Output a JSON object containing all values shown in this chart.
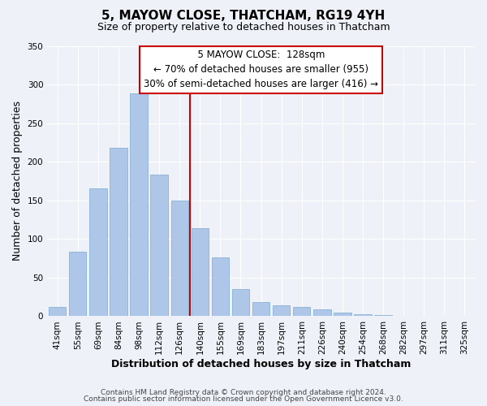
{
  "title": "5, MAYOW CLOSE, THATCHAM, RG19 4YH",
  "subtitle": "Size of property relative to detached houses in Thatcham",
  "xlabel": "Distribution of detached houses by size in Thatcham",
  "ylabel": "Number of detached properties",
  "bar_labels": [
    "41sqm",
    "55sqm",
    "69sqm",
    "84sqm",
    "98sqm",
    "112sqm",
    "126sqm",
    "140sqm",
    "155sqm",
    "169sqm",
    "183sqm",
    "197sqm",
    "211sqm",
    "226sqm",
    "240sqm",
    "254sqm",
    "268sqm",
    "282sqm",
    "297sqm",
    "311sqm",
    "325sqm"
  ],
  "bar_values": [
    12,
    84,
    165,
    218,
    288,
    183,
    150,
    114,
    76,
    35,
    18,
    14,
    12,
    9,
    5,
    3,
    2,
    1,
    1,
    1,
    1
  ],
  "bar_color": "#aec6e8",
  "bar_edge_color": "#7aaad0",
  "vline_x": 6.5,
  "vline_color": "#cc0000",
  "annotation_title": "5 MAYOW CLOSE:  128sqm",
  "annotation_line1": "← 70% of detached houses are smaller (955)",
  "annotation_line2": "30% of semi-detached houses are larger (416) →",
  "footer1": "Contains HM Land Registry data © Crown copyright and database right 2024.",
  "footer2": "Contains public sector information licensed under the Open Government Licence v3.0.",
  "ylim": [
    0,
    350
  ],
  "annotation_box_facecolor": "#ffffff",
  "annotation_box_edgecolor": "#cc0000",
  "background_color": "#eef2f8",
  "grid_color": "#ffffff",
  "title_fontsize": 11,
  "subtitle_fontsize": 9,
  "ylabel_fontsize": 9,
  "xlabel_fontsize": 9,
  "tick_fontsize": 7.5,
  "ann_fontsize": 8.5,
  "footer_fontsize": 6.5
}
